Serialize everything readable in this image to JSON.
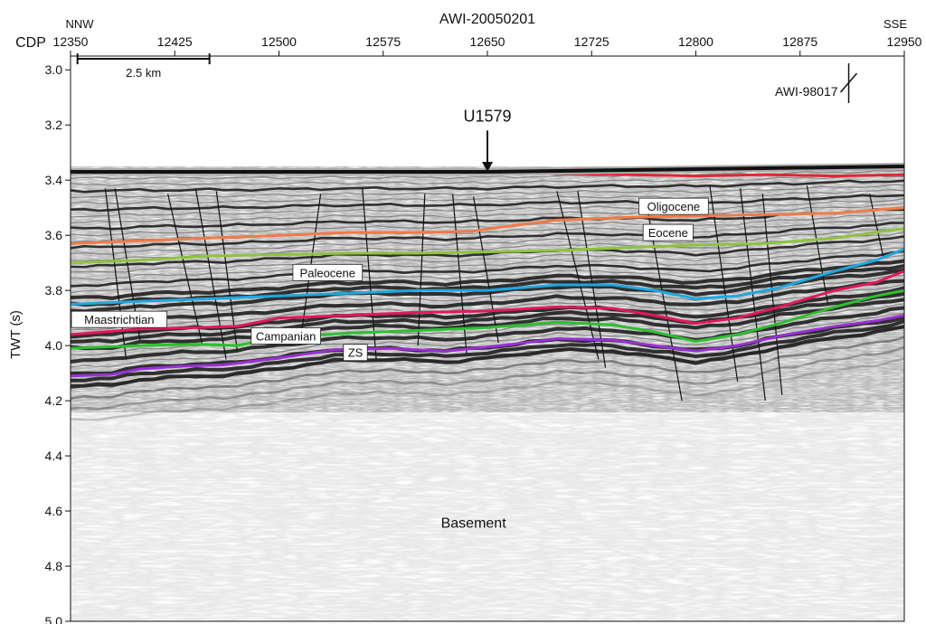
{
  "chart_data": {
    "type": "seismic-profile",
    "title": "AWI-20050201",
    "left_direction": "NNW",
    "right_direction": "SSE",
    "x_axis_label": "CDP",
    "x_ticks": [
      12350,
      12425,
      12500,
      12575,
      12650,
      12725,
      12800,
      12875,
      12950
    ],
    "xlim": [
      12350,
      12950
    ],
    "y_axis_label": "TWT (s)",
    "y_ticks": [
      "3.0",
      "3.2",
      "3.4",
      "3.6",
      "3.8",
      "4.0",
      "4.2",
      "4.4",
      "4.6",
      "4.8",
      "5.0"
    ],
    "ylim": [
      2.95,
      5.0
    ],
    "scale_bar": {
      "label": "2.5 km",
      "from_cdp": 12355,
      "to_cdp": 12450,
      "twt": 2.96
    },
    "site_marker": {
      "label": "U1579",
      "cdp": 12650,
      "arrow_top_twt": 3.22,
      "arrow_tip_twt": 3.37
    },
    "crossing_line": {
      "label": "AWI-98017",
      "cdp": 12910
    },
    "seafloor": {
      "color": "#111111",
      "points": [
        [
          12350,
          3.37
        ],
        [
          12500,
          3.37
        ],
        [
          12650,
          3.37
        ],
        [
          12800,
          3.36
        ],
        [
          12950,
          3.35
        ]
      ]
    },
    "horizons": [
      {
        "name": "Oligocene",
        "color": "#e0282e",
        "label_cdp": 12784,
        "label_twt": 3.495,
        "points": [
          [
            12690,
            3.375
          ],
          [
            12750,
            3.38
          ],
          [
            12800,
            3.385
          ],
          [
            12850,
            3.38
          ],
          [
            12900,
            3.385
          ],
          [
            12950,
            3.38
          ]
        ]
      },
      {
        "name": "Eocene",
        "color": "#f07a4a",
        "label_cdp": 12780,
        "label_twt": 3.59,
        "points": [
          [
            12350,
            3.63
          ],
          [
            12400,
            3.62
          ],
          [
            12450,
            3.61
          ],
          [
            12500,
            3.6
          ],
          [
            12550,
            3.59
          ],
          [
            12600,
            3.59
          ],
          [
            12640,
            3.585
          ],
          [
            12660,
            3.57
          ],
          [
            12700,
            3.545
          ],
          [
            12750,
            3.535
          ],
          [
            12800,
            3.53
          ],
          [
            12850,
            3.525
          ],
          [
            12900,
            3.52
          ],
          [
            12950,
            3.5
          ]
        ]
      },
      {
        "name": "Paleocene",
        "color": "#8cc43e",
        "label_cdp": 12535,
        "label_twt": 3.735,
        "points": [
          [
            12350,
            3.7
          ],
          [
            12400,
            3.69
          ],
          [
            12450,
            3.675
          ],
          [
            12500,
            3.67
          ],
          [
            12550,
            3.665
          ],
          [
            12600,
            3.665
          ],
          [
            12650,
            3.66
          ],
          [
            12700,
            3.655
          ],
          [
            12750,
            3.645
          ],
          [
            12800,
            3.635
          ],
          [
            12850,
            3.63
          ],
          [
            12900,
            3.61
          ],
          [
            12950,
            3.575
          ]
        ]
      },
      {
        "name": "",
        "color": "#1fa7e0",
        "points": [
          [
            12350,
            3.85
          ],
          [
            12400,
            3.84
          ],
          [
            12450,
            3.83
          ],
          [
            12500,
            3.82
          ],
          [
            12550,
            3.81
          ],
          [
            12600,
            3.8
          ],
          [
            12650,
            3.8
          ],
          [
            12700,
            3.78
          ],
          [
            12740,
            3.78
          ],
          [
            12770,
            3.8
          ],
          [
            12800,
            3.83
          ],
          [
            12830,
            3.82
          ],
          [
            12860,
            3.79
          ],
          [
            12900,
            3.73
          ],
          [
            12930,
            3.69
          ],
          [
            12950,
            3.65
          ]
        ]
      },
      {
        "name": "Maastrichtian",
        "color": "#e2185e",
        "label_cdp": 12385,
        "label_twt": 3.905,
        "points": [
          [
            12350,
            3.96
          ],
          [
            12400,
            3.94
          ],
          [
            12440,
            3.935
          ],
          [
            12470,
            3.93
          ],
          [
            12500,
            3.9
          ],
          [
            12550,
            3.89
          ],
          [
            12600,
            3.88
          ],
          [
            12650,
            3.875
          ],
          [
            12700,
            3.86
          ],
          [
            12740,
            3.865
          ],
          [
            12770,
            3.89
          ],
          [
            12800,
            3.92
          ],
          [
            12830,
            3.9
          ],
          [
            12860,
            3.86
          ],
          [
            12900,
            3.8
          ],
          [
            12930,
            3.77
          ],
          [
            12950,
            3.73
          ]
        ]
      },
      {
        "name": "Campanian",
        "color": "#2fbe2f",
        "label_cdp": 12505,
        "label_twt": 3.965,
        "points": [
          [
            12350,
            4.01
          ],
          [
            12400,
            4.0
          ],
          [
            12440,
            3.995
          ],
          [
            12470,
            4.0
          ],
          [
            12500,
            3.97
          ],
          [
            12550,
            3.955
          ],
          [
            12600,
            3.945
          ],
          [
            12650,
            3.935
          ],
          [
            12700,
            3.915
          ],
          [
            12740,
            3.925
          ],
          [
            12770,
            3.95
          ],
          [
            12800,
            3.985
          ],
          [
            12830,
            3.96
          ],
          [
            12860,
            3.92
          ],
          [
            12900,
            3.86
          ],
          [
            12930,
            3.82
          ],
          [
            12950,
            3.8
          ]
        ]
      },
      {
        "name": "ZS",
        "color": "#9a2fd6",
        "label_cdp": 12555,
        "label_twt": 4.025,
        "points": [
          [
            12350,
            4.11
          ],
          [
            12380,
            4.105
          ],
          [
            12400,
            4.085
          ],
          [
            12430,
            4.075
          ],
          [
            12460,
            4.07
          ],
          [
            12500,
            4.045
          ],
          [
            12540,
            4.015
          ],
          [
            12580,
            4.01
          ],
          [
            12620,
            4.02
          ],
          [
            12660,
            4.0
          ],
          [
            12700,
            3.975
          ],
          [
            12740,
            3.98
          ],
          [
            12770,
            4.0
          ],
          [
            12800,
            4.02
          ],
          [
            12830,
            4.0
          ],
          [
            12860,
            3.965
          ],
          [
            12900,
            3.93
          ],
          [
            12930,
            3.91
          ],
          [
            12950,
            3.89
          ]
        ]
      }
    ],
    "faults": [
      [
        [
          12375,
          3.43
        ],
        [
          12390,
          4.05
        ]
      ],
      [
        [
          12382,
          3.43
        ],
        [
          12400,
          3.98
        ]
      ],
      [
        [
          12420,
          3.45
        ],
        [
          12445,
          4.0
        ]
      ],
      [
        [
          12440,
          3.43
        ],
        [
          12462,
          4.05
        ]
      ],
      [
        [
          12455,
          3.44
        ],
        [
          12470,
          4.02
        ]
      ],
      [
        [
          12530,
          3.45
        ],
        [
          12515,
          4.0
        ]
      ],
      [
        [
          12560,
          3.43
        ],
        [
          12570,
          4.05
        ]
      ],
      [
        [
          12605,
          3.45
        ],
        [
          12600,
          4.0
        ]
      ],
      [
        [
          12625,
          3.45
        ],
        [
          12635,
          4.03
        ]
      ],
      [
        [
          12640,
          3.46
        ],
        [
          12658,
          3.99
        ]
      ],
      [
        [
          12700,
          3.44
        ],
        [
          12730,
          4.05
        ]
      ],
      [
        [
          12715,
          3.44
        ],
        [
          12735,
          4.08
        ]
      ],
      [
        [
          12765,
          3.5
        ],
        [
          12790,
          4.2
        ]
      ],
      [
        [
          12810,
          3.42
        ],
        [
          12830,
          4.13
        ]
      ],
      [
        [
          12832,
          3.43
        ],
        [
          12850,
          4.2
        ]
      ],
      [
        [
          12848,
          3.45
        ],
        [
          12862,
          4.18
        ]
      ],
      [
        [
          12880,
          3.42
        ],
        [
          12895,
          3.85
        ]
      ],
      [
        [
          12925,
          3.45
        ],
        [
          12935,
          3.68
        ]
      ]
    ],
    "unit_label": {
      "name": "Basement",
      "cdp": 12640,
      "twt": 4.66
    }
  }
}
